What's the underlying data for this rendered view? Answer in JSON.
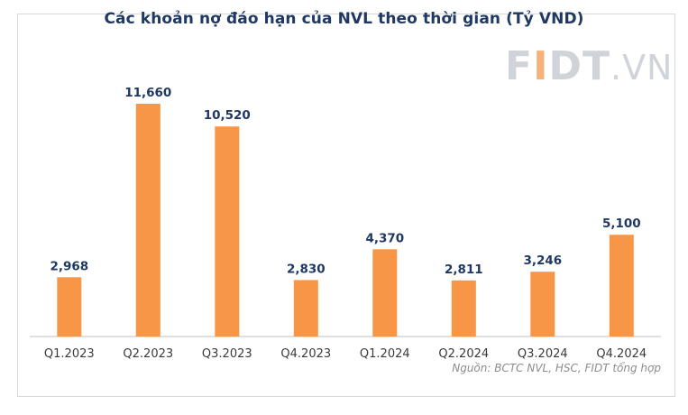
{
  "logo": {
    "text": "FIDT",
    "domain": ".VN"
  },
  "source": "Nguồn: BCTC NVL, HSC, FIDT tổng hợp",
  "colors": {
    "bar": "#f79646",
    "title": "#1f3864",
    "label": "#1f3864"
  },
  "chart_data": {
    "type": "bar",
    "title": "Các khoản nợ đáo hạn của NVL theo thời gian (Tỷ VND)",
    "categories": [
      "Q1.2023",
      "Q2.2023",
      "Q3.2023",
      "Q4.2023",
      "Q1.2024",
      "Q2.2024",
      "Q3.2024",
      "Q4.2024"
    ],
    "values": [
      2968,
      11660,
      10520,
      2830,
      4370,
      2811,
      3246,
      5100
    ],
    "value_labels": [
      "2,968",
      "11,660",
      "10,520",
      "2,830",
      "4,370",
      "2,811",
      "3,246",
      "5,100"
    ],
    "xlabel": "",
    "ylabel": "",
    "ylim": [
      0,
      11660
    ],
    "grid": false,
    "legend": "none"
  }
}
